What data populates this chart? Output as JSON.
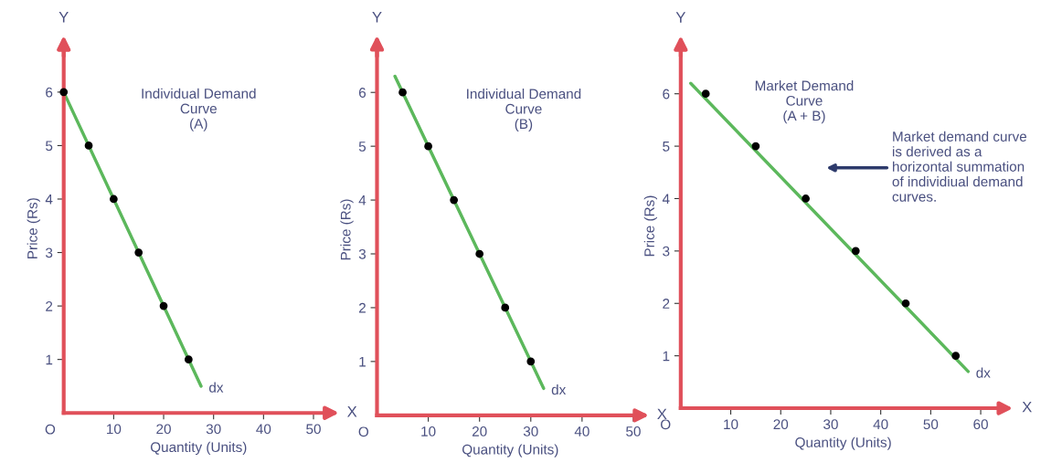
{
  "chart_data": [
    {
      "type": "line",
      "title": "Individual Demand\nCurve\n(A)",
      "xlabel": "Quantity (Units)",
      "ylabel": "Price (Rs)",
      "xlim": [
        0,
        54
      ],
      "ylim": [
        0,
        6.9
      ],
      "xticks": [
        10,
        20,
        30,
        40,
        50
      ],
      "yticks": [
        1,
        2,
        3,
        4,
        5,
        6
      ],
      "grid": false,
      "series": [
        {
          "color": "#5cb85c",
          "x": [
            0,
            27.5
          ],
          "values": [
            6,
            0.5
          ]
        },
        {
          "type": "scatter",
          "color": "#000000",
          "x": [
            0,
            5,
            10,
            15,
            20,
            25
          ],
          "values": [
            6,
            5,
            4,
            3,
            2,
            1
          ]
        }
      ],
      "annotations": [
        "Y",
        "X",
        "O",
        {
          "text": "dx",
          "x": 27.5,
          "y": 0.5
        }
      ]
    },
    {
      "type": "line",
      "title": "Individual Demand\nCurve\n(B)",
      "xlabel": "Quantity (Units)",
      "ylabel": "Price (Rs)",
      "xlim": [
        0,
        52
      ],
      "ylim": [
        0,
        6.9
      ],
      "xticks": [
        10,
        20,
        30,
        40,
        50
      ],
      "yticks": [
        1,
        2,
        3,
        4,
        5,
        6
      ],
      "grid": false,
      "series": [
        {
          "color": "#5cb85c",
          "x": [
            3.5,
            32.5
          ],
          "values": [
            6.3,
            0.5
          ]
        },
        {
          "type": "scatter",
          "color": "#000000",
          "x": [
            5,
            10,
            15,
            20,
            25,
            30
          ],
          "values": [
            6,
            5,
            4,
            3,
            2,
            1
          ]
        }
      ],
      "annotations": [
        "Y",
        "X",
        "O",
        {
          "text": "dx",
          "x": 32.5,
          "y": 0.5
        }
      ]
    },
    {
      "type": "line",
      "title": "Market Demand\nCurve\n(A + B)",
      "xlabel": "Quantity (Units)",
      "ylabel": "Price (Rs)",
      "xlim": [
        0,
        65
      ],
      "ylim": [
        0,
        6.95
      ],
      "xticks": [
        10,
        20,
        30,
        40,
        50,
        60
      ],
      "yticks": [
        1,
        2,
        3,
        4,
        5,
        6
      ],
      "grid": false,
      "series": [
        {
          "color": "#5cb85c",
          "x": [
            2,
            57.5
          ],
          "values": [
            6.2,
            0.7
          ]
        },
        {
          "type": "scatter",
          "color": "#000000",
          "x": [
            5,
            15,
            25,
            35,
            45,
            55
          ],
          "values": [
            6,
            5,
            4,
            3,
            2,
            1
          ]
        }
      ],
      "annotations": [
        "Y",
        "X",
        "O",
        {
          "text": "dx",
          "x": 57.5,
          "y": 0.7
        },
        "Market demand curve\nis derived as a\nhorizontal summation\nof individiual demand\ncurves."
      ]
    }
  ]
}
